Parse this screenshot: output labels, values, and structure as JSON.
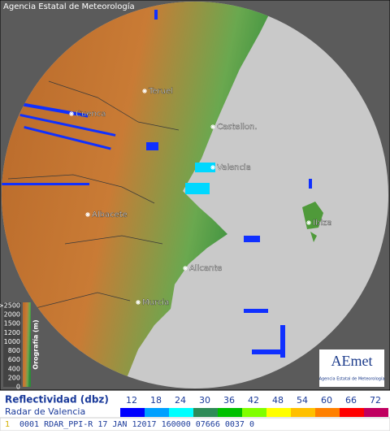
{
  "header": {
    "agency": "Agencia Estatal de Meteorología"
  },
  "cities": [
    {
      "label": "Teruel"
    },
    {
      "label": "Cuenca"
    },
    {
      "label": "Castellon."
    },
    {
      "label": "Valencia"
    },
    {
      "label": "Albacete"
    },
    {
      "label": "Alicante"
    },
    {
      "label": "Murcia"
    },
    {
      "label": "Ibiza"
    }
  ],
  "elevation_scale": {
    "title": "Orografía (m)",
    "labels": [
      ">2500",
      2000,
      1500,
      1200,
      1000,
      800,
      600,
      400,
      200,
      0
    ]
  },
  "logo": {
    "name": "AEmet",
    "text": "Agencia Estatal de Meteorología"
  },
  "legend": {
    "title": "Reflectividad (dbz)",
    "subtitle": "Radar de Valencia",
    "levels": [
      {
        "value": 12,
        "color": "#0000ff"
      },
      {
        "value": 18,
        "color": "#00a0ff"
      },
      {
        "value": 24,
        "color": "#00ffff"
      },
      {
        "value": 30,
        "color": "#2e8b57"
      },
      {
        "value": 36,
        "color": "#00c000"
      },
      {
        "value": 42,
        "color": "#80ff00"
      },
      {
        "value": 48,
        "color": "#ffff00"
      },
      {
        "value": 54,
        "color": "#ffc000"
      },
      {
        "value": 60,
        "color": "#ff8000"
      },
      {
        "value": 66,
        "color": "#ff0000"
      },
      {
        "value": 72,
        "color": "#c00060"
      }
    ]
  },
  "status": {
    "flag": "1",
    "text": "0001 RDAR_PPI-R  17 JAN 12017 160000 07666 0037 0"
  }
}
